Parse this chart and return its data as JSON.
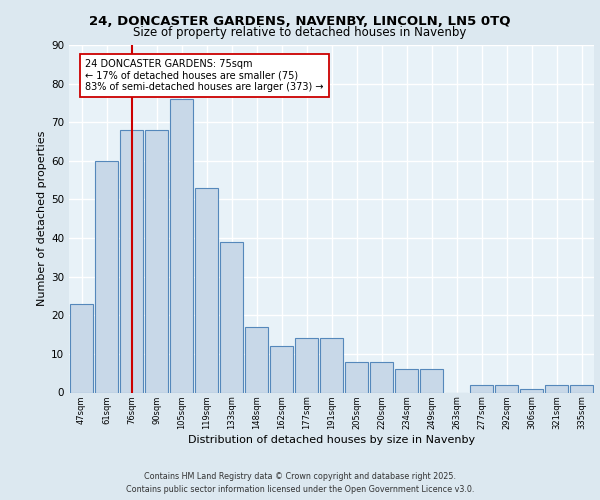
{
  "title1": "24, DONCASTER GARDENS, NAVENBY, LINCOLN, LN5 0TQ",
  "title2": "Size of property relative to detached houses in Navenby",
  "xlabel": "Distribution of detached houses by size in Navenby",
  "ylabel": "Number of detached properties",
  "categories": [
    "47sqm",
    "61sqm",
    "76sqm",
    "90sqm",
    "105sqm",
    "119sqm",
    "133sqm",
    "148sqm",
    "162sqm",
    "177sqm",
    "191sqm",
    "205sqm",
    "220sqm",
    "234sqm",
    "249sqm",
    "263sqm",
    "277sqm",
    "292sqm",
    "306sqm",
    "321sqm",
    "335sqm"
  ],
  "values": [
    23,
    60,
    68,
    68,
    76,
    53,
    39,
    17,
    12,
    14,
    14,
    8,
    8,
    6,
    6,
    0,
    2,
    2,
    1,
    2,
    2
  ],
  "bar_color": "#c8d8e8",
  "bar_edge_color": "#5588bb",
  "vline_x": 2,
  "vline_color": "#cc0000",
  "annotation_text": "24 DONCASTER GARDENS: 75sqm\n← 17% of detached houses are smaller (75)\n83% of semi-detached houses are larger (373) →",
  "annotation_box_color": "#ffffff",
  "annotation_box_edge": "#cc0000",
  "footer": "Contains HM Land Registry data © Crown copyright and database right 2025.\nContains public sector information licensed under the Open Government Licence v3.0.",
  "bg_color": "#dce8f0",
  "plot_bg_color": "#e8f2f8",
  "grid_color": "#ffffff",
  "ylim": [
    0,
    90
  ],
  "yticks": [
    0,
    10,
    20,
    30,
    40,
    50,
    60,
    70,
    80,
    90
  ]
}
